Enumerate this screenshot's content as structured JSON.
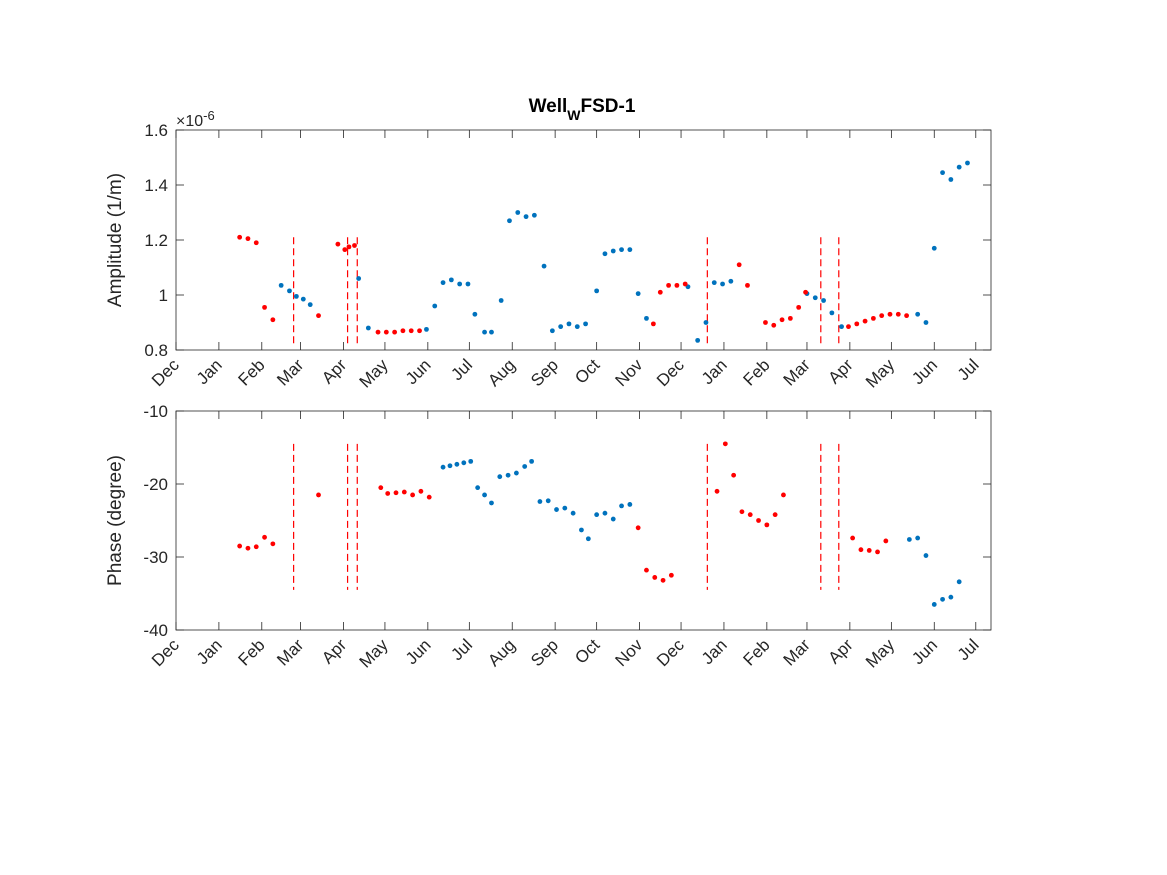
{
  "figure": {
    "title": "Well",
    "title_subscript": "W",
    "title_suffix": "FSD-1"
  },
  "colors": {
    "blue": "#0072BD",
    "red": "#FF0000",
    "axis": "#262626"
  },
  "chart_data": [
    {
      "type": "scatter",
      "ylabel": "Amplitude (1/m)",
      "xlabel": "",
      "exponent_label": "×10",
      "exponent_power": "-6",
      "ylim": [
        0.8,
        1.6
      ],
      "yticks": [
        0.8,
        1,
        1.2,
        1.4,
        1.6
      ],
      "ytick_labels": [
        "0.8",
        "1",
        "1.2",
        "1.4",
        "1.6"
      ],
      "xlim": [
        "2018-12-01",
        "2020-07-12"
      ],
      "xticks": [
        "2018-12-01",
        "2019-01-01",
        "2019-02-01",
        "2019-03-01",
        "2019-04-01",
        "2019-05-01",
        "2019-06-01",
        "2019-07-01",
        "2019-08-01",
        "2019-09-01",
        "2019-10-01",
        "2019-11-01",
        "2019-12-01",
        "2020-01-01",
        "2020-02-01",
        "2020-03-01",
        "2020-04-01",
        "2020-05-01",
        "2020-06-01",
        "2020-07-01"
      ],
      "xtick_labels": [
        "Dec",
        "Jan",
        "Feb",
        "Mar",
        "Apr",
        "May",
        "Jun",
        "Jul",
        "Aug",
        "Sep",
        "Oct",
        "Nov",
        "Dec",
        "Jan",
        "Feb",
        "Mar",
        "Apr",
        "May",
        "Jun",
        "Jul"
      ],
      "grid": false,
      "vlines": {
        "color": "red",
        "style": "dashed",
        "y_range": [
          0.82,
          1.21
        ],
        "x": [
          "2019-02-24",
          "2019-04-04",
          "2019-04-11",
          "2019-12-20",
          "2020-03-11",
          "2020-03-24"
        ]
      },
      "series": [
        {
          "color": "blue",
          "points": [
            [
              "2019-02-15",
              1.035
            ],
            [
              "2019-02-21",
              1.015
            ],
            [
              "2019-02-26",
              0.995
            ],
            [
              "2019-03-03",
              0.985
            ],
            [
              "2019-03-08",
              0.965
            ],
            [
              "2019-04-12",
              1.06
            ],
            [
              "2019-04-19",
              0.88
            ],
            [
              "2019-05-31",
              0.875
            ],
            [
              "2019-06-06",
              0.96
            ],
            [
              "2019-06-12",
              1.045
            ],
            [
              "2019-06-18",
              1.055
            ],
            [
              "2019-06-24",
              1.04
            ],
            [
              "2019-06-30",
              1.04
            ],
            [
              "2019-07-05",
              0.93
            ],
            [
              "2019-07-12",
              0.865
            ],
            [
              "2019-07-17",
              0.865
            ],
            [
              "2019-07-24",
              0.98
            ],
            [
              "2019-07-30",
              1.27
            ],
            [
              "2019-08-05",
              1.3
            ],
            [
              "2019-08-11",
              1.285
            ],
            [
              "2019-08-17",
              1.29
            ],
            [
              "2019-08-24",
              1.105
            ],
            [
              "2019-08-30",
              0.87
            ],
            [
              "2019-09-05",
              0.885
            ],
            [
              "2019-09-11",
              0.895
            ],
            [
              "2019-09-17",
              0.885
            ],
            [
              "2019-09-23",
              0.895
            ],
            [
              "2019-10-01",
              1.015
            ],
            [
              "2019-10-07",
              1.15
            ],
            [
              "2019-10-13",
              1.16
            ],
            [
              "2019-10-19",
              1.165
            ],
            [
              "2019-10-25",
              1.165
            ],
            [
              "2019-10-31",
              1.005
            ],
            [
              "2019-11-06",
              0.915
            ],
            [
              "2019-12-06",
              1.03
            ],
            [
              "2019-12-13",
              0.835
            ],
            [
              "2019-12-19",
              0.9
            ],
            [
              "2019-12-25",
              1.045
            ],
            [
              "2019-12-31",
              1.04
            ],
            [
              "2020-01-06",
              1.05
            ],
            [
              "2020-03-01",
              1.005
            ],
            [
              "2020-03-07",
              0.99
            ],
            [
              "2020-03-13",
              0.98
            ],
            [
              "2020-03-19",
              0.935
            ],
            [
              "2020-03-26",
              0.885
            ],
            [
              "2020-05-20",
              0.93
            ],
            [
              "2020-05-26",
              0.9
            ],
            [
              "2020-06-01",
              1.17
            ],
            [
              "2020-06-07",
              1.445
            ],
            [
              "2020-06-13",
              1.42
            ],
            [
              "2020-06-19",
              1.465
            ],
            [
              "2020-06-25",
              1.48
            ]
          ]
        },
        {
          "color": "red",
          "points": [
            [
              "2019-01-16",
              1.21
            ],
            [
              "2019-01-22",
              1.205
            ],
            [
              "2019-01-28",
              1.19
            ],
            [
              "2019-02-03",
              0.955
            ],
            [
              "2019-02-09",
              0.91
            ],
            [
              "2019-03-14",
              0.925
            ],
            [
              "2019-03-28",
              1.185
            ],
            [
              "2019-04-02",
              1.165
            ],
            [
              "2019-04-05",
              1.175
            ],
            [
              "2019-04-09",
              1.18
            ],
            [
              "2019-04-26",
              0.865
            ],
            [
              "2019-05-02",
              0.865
            ],
            [
              "2019-05-08",
              0.865
            ],
            [
              "2019-05-14",
              0.87
            ],
            [
              "2019-05-20",
              0.87
            ],
            [
              "2019-05-26",
              0.87
            ],
            [
              "2019-11-11",
              0.895
            ],
            [
              "2019-11-16",
              1.01
            ],
            [
              "2019-11-22",
              1.035
            ],
            [
              "2019-11-28",
              1.035
            ],
            [
              "2019-12-04",
              1.04
            ],
            [
              "2020-01-12",
              1.11
            ],
            [
              "2020-01-18",
              1.035
            ],
            [
              "2020-01-31",
              0.9
            ],
            [
              "2020-02-06",
              0.89
            ],
            [
              "2020-02-12",
              0.91
            ],
            [
              "2020-02-18",
              0.915
            ],
            [
              "2020-02-24",
              0.955
            ],
            [
              "2020-02-29",
              1.01
            ],
            [
              "2020-03-31",
              0.885
            ],
            [
              "2020-04-06",
              0.895
            ],
            [
              "2020-04-12",
              0.905
            ],
            [
              "2020-04-18",
              0.915
            ],
            [
              "2020-04-24",
              0.925
            ],
            [
              "2020-04-30",
              0.93
            ],
            [
              "2020-05-06",
              0.93
            ],
            [
              "2020-05-12",
              0.925
            ]
          ]
        }
      ]
    },
    {
      "type": "scatter",
      "ylabel": "Phase (degree)",
      "xlabel": "",
      "ylim": [
        -40,
        -10
      ],
      "yticks": [
        -40,
        -30,
        -20,
        -10
      ],
      "ytick_labels": [
        "-40",
        "-30",
        "-20",
        "-10"
      ],
      "xlim": [
        "2018-12-01",
        "2020-07-12"
      ],
      "xticks": [
        "2018-12-01",
        "2019-01-01",
        "2019-02-01",
        "2019-03-01",
        "2019-04-01",
        "2019-05-01",
        "2019-06-01",
        "2019-07-01",
        "2019-08-01",
        "2019-09-01",
        "2019-10-01",
        "2019-11-01",
        "2019-12-01",
        "2020-01-01",
        "2020-02-01",
        "2020-03-01",
        "2020-04-01",
        "2020-05-01",
        "2020-06-01",
        "2020-07-01"
      ],
      "xtick_labels": [
        "Dec",
        "Jan",
        "Feb",
        "Mar",
        "Apr",
        "May",
        "Jun",
        "Jul",
        "Aug",
        "Sep",
        "Oct",
        "Nov",
        "Dec",
        "Jan",
        "Feb",
        "Mar",
        "Apr",
        "May",
        "Jun",
        "Jul"
      ],
      "grid": false,
      "vlines": {
        "color": "red",
        "style": "dashed",
        "y_range": [
          -34.5,
          -14.5
        ],
        "x": [
          "2019-02-24",
          "2019-04-04",
          "2019-04-11",
          "2019-12-20",
          "2020-03-11",
          "2020-03-24"
        ]
      },
      "series": [
        {
          "color": "blue",
          "points": [
            [
              "2019-06-12",
              -17.7
            ],
            [
              "2019-06-17",
              -17.5
            ],
            [
              "2019-06-22",
              -17.3
            ],
            [
              "2019-06-27",
              -17.1
            ],
            [
              "2019-07-02",
              -16.9
            ],
            [
              "2019-07-07",
              -20.5
            ],
            [
              "2019-07-12",
              -21.5
            ],
            [
              "2019-07-17",
              -22.6
            ],
            [
              "2019-07-23",
              -19.0
            ],
            [
              "2019-07-29",
              -18.8
            ],
            [
              "2019-08-04",
              -18.5
            ],
            [
              "2019-08-10",
              -17.6
            ],
            [
              "2019-08-15",
              -16.9
            ],
            [
              "2019-08-21",
              -22.4
            ],
            [
              "2019-08-27",
              -22.3
            ],
            [
              "2019-09-02",
              -23.5
            ],
            [
              "2019-09-08",
              -23.3
            ],
            [
              "2019-09-14",
              -24.0
            ],
            [
              "2019-09-20",
              -26.3
            ],
            [
              "2019-09-25",
              -27.5
            ],
            [
              "2019-10-01",
              -24.2
            ],
            [
              "2019-10-07",
              -24.0
            ],
            [
              "2019-10-13",
              -24.8
            ],
            [
              "2019-10-19",
              -23.0
            ],
            [
              "2019-10-25",
              -22.8
            ],
            [
              "2020-05-14",
              -27.6
            ],
            [
              "2020-05-20",
              -27.4
            ],
            [
              "2020-05-26",
              -29.8
            ],
            [
              "2020-06-01",
              -36.5
            ],
            [
              "2020-06-07",
              -35.8
            ],
            [
              "2020-06-13",
              -35.5
            ],
            [
              "2020-06-19",
              -33.4
            ]
          ]
        },
        {
          "color": "red",
          "points": [
            [
              "2019-01-16",
              -28.5
            ],
            [
              "2019-01-22",
              -28.8
            ],
            [
              "2019-01-28",
              -28.6
            ],
            [
              "2019-02-03",
              -27.3
            ],
            [
              "2019-02-09",
              -28.2
            ],
            [
              "2019-03-14",
              -21.5
            ],
            [
              "2019-04-28",
              -20.5
            ],
            [
              "2019-05-03",
              -21.3
            ],
            [
              "2019-05-09",
              -21.2
            ],
            [
              "2019-05-15",
              -21.1
            ],
            [
              "2019-05-21",
              -21.5
            ],
            [
              "2019-05-27",
              -21.0
            ],
            [
              "2019-06-02",
              -21.8
            ],
            [
              "2019-10-31",
              -26.0
            ],
            [
              "2019-11-06",
              -31.8
            ],
            [
              "2019-11-12",
              -32.8
            ],
            [
              "2019-11-18",
              -33.2
            ],
            [
              "2019-11-24",
              -32.5
            ],
            [
              "2019-12-27",
              -21.0
            ],
            [
              "2020-01-02",
              -14.5
            ],
            [
              "2020-01-08",
              -18.8
            ],
            [
              "2020-01-14",
              -23.8
            ],
            [
              "2020-01-20",
              -24.2
            ],
            [
              "2020-01-26",
              -25.0
            ],
            [
              "2020-02-01",
              -25.6
            ],
            [
              "2020-02-07",
              -24.2
            ],
            [
              "2020-02-13",
              -21.5
            ],
            [
              "2020-04-03",
              -27.4
            ],
            [
              "2020-04-09",
              -29.0
            ],
            [
              "2020-04-15",
              -29.1
            ],
            [
              "2020-04-21",
              -29.3
            ],
            [
              "2020-04-27",
              -27.8
            ]
          ]
        }
      ]
    }
  ]
}
